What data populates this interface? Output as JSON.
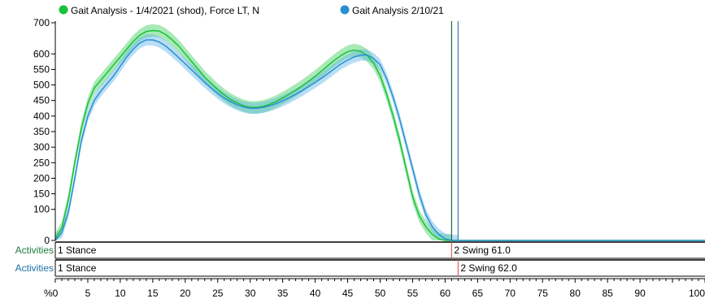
{
  "chart_data": {
    "type": "line",
    "series": [
      {
        "name": "Gait Analysis - 1/4/2021 (shod), Force LT, N",
        "color": "#19c23a",
        "band_color": "#3fcf5c",
        "x": [
          0,
          1,
          2,
          3,
          4,
          5,
          6,
          7,
          8,
          9,
          10,
          11,
          12,
          13,
          14,
          15,
          16,
          17,
          18,
          19,
          20,
          21,
          22,
          23,
          24,
          25,
          26,
          27,
          28,
          29,
          30,
          31,
          32,
          33,
          34,
          35,
          36,
          37,
          38,
          39,
          40,
          41,
          42,
          43,
          44,
          45,
          46,
          47,
          48,
          49,
          50,
          51,
          52,
          53,
          54,
          55,
          56,
          57,
          58,
          59,
          60,
          61
        ],
        "values": [
          5,
          40,
          130,
          250,
          360,
          440,
          490,
          515,
          540,
          565,
          590,
          615,
          640,
          660,
          672,
          675,
          673,
          662,
          645,
          625,
          600,
          575,
          550,
          525,
          505,
          485,
          468,
          453,
          442,
          433,
          428,
          428,
          431,
          438,
          447,
          458,
          470,
          483,
          497,
          512,
          528,
          545,
          563,
          580,
          595,
          607,
          612,
          608,
          595,
          570,
          530,
          470,
          400,
          320,
          230,
          140,
          80,
          45,
          20,
          5,
          0,
          0
        ],
        "band": 20,
        "marker_x": 61,
        "activities": [
          {
            "label": "1 Stance",
            "start": 0
          },
          {
            "label": "2 Swing 61.0",
            "start": 61
          }
        ]
      },
      {
        "name": "Gait Analysis 2/10/21",
        "color": "#2a8fd0",
        "band_color": "#5fb5e8",
        "x": [
          0,
          1,
          2,
          3,
          4,
          5,
          6,
          7,
          8,
          9,
          10,
          11,
          12,
          13,
          14,
          15,
          16,
          17,
          18,
          19,
          20,
          21,
          22,
          23,
          24,
          25,
          26,
          27,
          28,
          29,
          30,
          31,
          32,
          33,
          34,
          35,
          36,
          37,
          38,
          39,
          40,
          41,
          42,
          43,
          44,
          45,
          46,
          47,
          48,
          49,
          50,
          51,
          52,
          53,
          54,
          55,
          56,
          57,
          58,
          59,
          60,
          61,
          62
        ],
        "values": [
          0,
          25,
          90,
          200,
          320,
          400,
          450,
          480,
          505,
          530,
          560,
          590,
          615,
          635,
          645,
          645,
          638,
          625,
          607,
          588,
          568,
          548,
          528,
          508,
          490,
          473,
          458,
          446,
          436,
          429,
          425,
          425,
          428,
          433,
          440,
          449,
          459,
          470,
          482,
          495,
          508,
          522,
          537,
          553,
          568,
          580,
          590,
          596,
          596,
          585,
          565,
          520,
          460,
          390,
          310,
          230,
          150,
          85,
          45,
          20,
          5,
          0,
          0
        ],
        "band": 18,
        "marker_x": 62,
        "activities": [
          {
            "label": "1 Stance",
            "start": 0
          },
          {
            "label": "2 Swing 62.0",
            "start": 62
          }
        ]
      }
    ],
    "activities_label": "Activities",
    "xlabel": "%",
    "xlim": [
      0,
      100
    ],
    "ylim": [
      0,
      700
    ],
    "xticks": [
      0,
      5,
      10,
      15,
      20,
      25,
      30,
      35,
      40,
      45,
      50,
      55,
      60,
      65,
      70,
      75,
      80,
      85,
      90,
      100
    ],
    "yticks": [
      0,
      100,
      150,
      200,
      250,
      300,
      350,
      400,
      450,
      500,
      550,
      600,
      700
    ],
    "grid": false,
    "legend_position": "top"
  }
}
